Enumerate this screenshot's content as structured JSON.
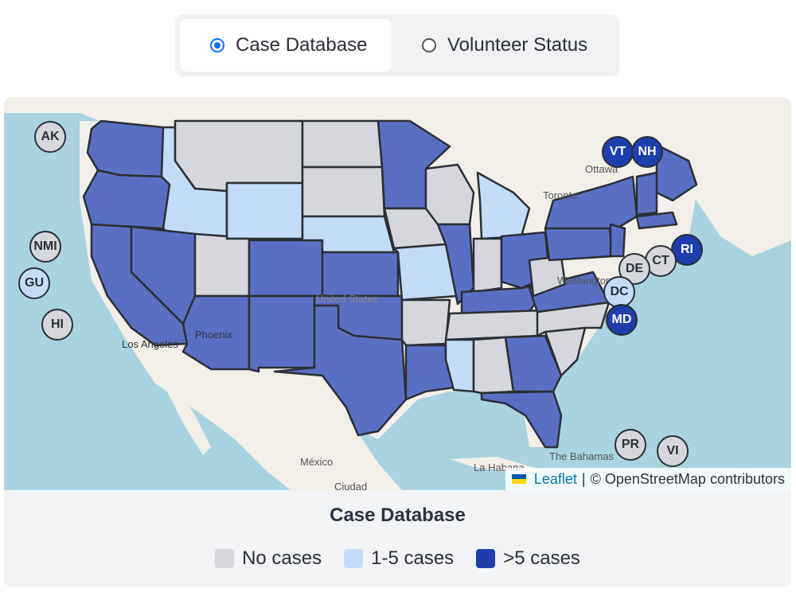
{
  "toggle": {
    "options": [
      {
        "label": "Case Database",
        "selected": true
      },
      {
        "label": "Volunteer Status",
        "selected": false
      }
    ]
  },
  "map": {
    "city_labels": [
      "Ottawa",
      "Toronto",
      "Washington",
      "United States",
      "Phoenix",
      "Los Angeles",
      "México",
      "La Habana",
      "The Bahamas",
      "Ciudad"
    ],
    "attribution": {
      "leaflet": "Leaflet",
      "separator": "|",
      "osm": "© OpenStreetMap contributors"
    },
    "colors": {
      "none": "#d5d7dc",
      "few": "#c5dcf7",
      "many": "#5a6fc4",
      "water": "#aad3df",
      "land": "#f2efe9",
      "border": "#2b2f36"
    },
    "territories": [
      {
        "code": "AK",
        "level": "none"
      },
      {
        "code": "NMI",
        "level": "none"
      },
      {
        "code": "GU",
        "level": "few"
      },
      {
        "code": "HI",
        "level": "none"
      },
      {
        "code": "VT",
        "level": "many"
      },
      {
        "code": "NH",
        "level": "many"
      },
      {
        "code": "RI",
        "level": "many"
      },
      {
        "code": "CT",
        "level": "none"
      },
      {
        "code": "DE",
        "level": "none"
      },
      {
        "code": "DC",
        "level": "few"
      },
      {
        "code": "MD",
        "level": "many"
      },
      {
        "code": "PR",
        "level": "none"
      },
      {
        "code": "VI",
        "level": "none"
      }
    ]
  },
  "legend": {
    "title": "Case Database",
    "items": [
      {
        "label": "No cases",
        "color": "#d5d7dc"
      },
      {
        "label": "1-5 cases",
        "color": "#c5dcf7"
      },
      {
        "label": ">5 cases",
        "color": "#1e3eaf"
      }
    ]
  }
}
